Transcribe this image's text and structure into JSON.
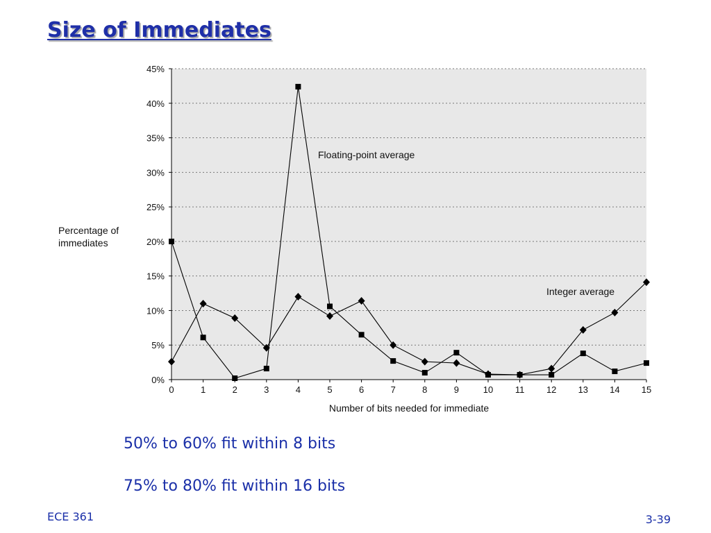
{
  "slide": {
    "title": "Size of Immediates",
    "bullets": [
      "50% to 60% fit within 8 bits",
      "75% to 80% fit within 16 bits"
    ],
    "footer_left": "ECE 361",
    "footer_right": "3-39"
  },
  "colors": {
    "title": "#1f2fa8",
    "text": "#1a2fa8",
    "plot_bg": "#e8e8e8",
    "series": "#000000"
  },
  "chart_data": {
    "type": "line",
    "xlabel": "Number of bits needed for immediate",
    "ylabel": [
      "Percentage of",
      "immediates"
    ],
    "x": [
      0,
      1,
      2,
      3,
      4,
      5,
      6,
      7,
      8,
      9,
      10,
      11,
      12,
      13,
      14,
      15
    ],
    "xlim": [
      0,
      15
    ],
    "ylim": [
      0,
      45
    ],
    "y_ticks": [
      "0%",
      "5%",
      "10%",
      "15%",
      "20%",
      "25%",
      "30%",
      "35%",
      "40%",
      "45%"
    ],
    "grid": "horizontal-dotted",
    "series": [
      {
        "name": "Floating-point average",
        "marker": "square",
        "values": [
          20.0,
          6.1,
          0.2,
          1.6,
          42.4,
          10.6,
          6.5,
          2.7,
          1.0,
          3.9,
          0.7,
          0.7,
          0.7,
          3.8,
          1.2,
          2.4
        ]
      },
      {
        "name": "Integer average",
        "marker": "diamond",
        "values": [
          2.6,
          11.0,
          8.9,
          4.6,
          12.0,
          9.2,
          11.4,
          5.0,
          2.6,
          2.4,
          0.8,
          0.7,
          1.6,
          7.2,
          9.7,
          14.1
        ]
      }
    ]
  }
}
